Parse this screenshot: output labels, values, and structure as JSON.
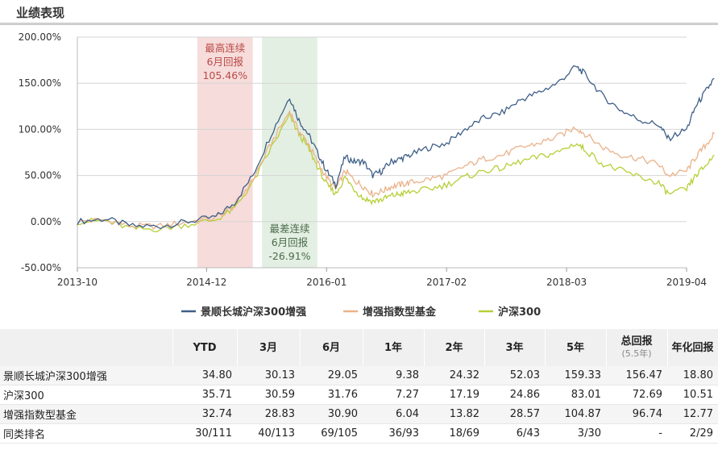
{
  "section_title": "业绩表现",
  "chart_data": {
    "type": "line",
    "y_ticks": [
      "200.00%",
      "150.00%",
      "100.00%",
      "50.00%",
      "0.00%",
      "-50.00%"
    ],
    "y_range": [
      -50,
      200
    ],
    "x_tick_labels": [
      "2013-10",
      "2014-12",
      "2016-01",
      "2017-02",
      "2018-03",
      "2019-04"
    ],
    "x_range": [
      "2013-10",
      "2019-04"
    ],
    "grid": "horizontal",
    "annotations": [
      {
        "text": [
          "最高连续",
          "6月回报",
          "105.46%"
        ],
        "color": "#b94a48",
        "shade": "#f6dcda"
      },
      {
        "text": [
          "最差连续",
          "6月回报",
          "-26.91%"
        ],
        "color": "#4b6b4b",
        "shade": "#e3efe3"
      }
    ],
    "legend_position": "bottom",
    "series": [
      {
        "name": "景顺长城沪深300增强",
        "color": "#3f5f88",
        "points": [
          [
            0,
            0
          ],
          [
            3,
            3
          ],
          [
            6,
            -5
          ],
          [
            9,
            -5
          ],
          [
            12,
            0
          ],
          [
            15,
            5
          ],
          [
            17,
            20
          ],
          [
            19,
            50
          ],
          [
            21,
            95
          ],
          [
            23,
            135
          ],
          [
            24,
            110
          ],
          [
            25,
            95
          ],
          [
            26,
            75
          ],
          [
            27,
            55
          ],
          [
            28,
            40
          ],
          [
            29,
            70
          ],
          [
            30,
            65
          ],
          [
            31,
            65
          ],
          [
            32,
            50
          ],
          [
            33,
            55
          ],
          [
            34,
            65
          ],
          [
            35,
            68
          ],
          [
            36,
            72
          ],
          [
            38,
            80
          ],
          [
            40,
            85
          ],
          [
            42,
            100
          ],
          [
            44,
            112
          ],
          [
            46,
            118
          ],
          [
            48,
            132
          ],
          [
            50,
            140
          ],
          [
            52,
            150
          ],
          [
            54,
            168
          ],
          [
            55,
            160
          ],
          [
            57,
            135
          ],
          [
            59,
            120
          ],
          [
            61,
            110
          ],
          [
            63,
            105
          ],
          [
            64,
            90
          ],
          [
            66,
            100
          ],
          [
            67,
            125
          ],
          [
            68,
            140
          ],
          [
            69,
            155
          ]
        ]
      },
      {
        "name": "增强指数型基金",
        "color": "#eab28a",
        "points": [
          [
            0,
            0
          ],
          [
            3,
            2
          ],
          [
            6,
            -5
          ],
          [
            9,
            -5
          ],
          [
            12,
            0
          ],
          [
            15,
            4
          ],
          [
            17,
            17
          ],
          [
            19,
            45
          ],
          [
            21,
            85
          ],
          [
            23,
            120
          ],
          [
            24,
            98
          ],
          [
            25,
            85
          ],
          [
            26,
            65
          ],
          [
            27,
            48
          ],
          [
            28,
            35
          ],
          [
            29,
            55
          ],
          [
            30,
            45
          ],
          [
            31,
            38
          ],
          [
            32,
            30
          ],
          [
            33,
            33
          ],
          [
            34,
            38
          ],
          [
            35,
            40
          ],
          [
            36,
            42
          ],
          [
            38,
            46
          ],
          [
            40,
            50
          ],
          [
            42,
            60
          ],
          [
            44,
            68
          ],
          [
            46,
            72
          ],
          [
            48,
            80
          ],
          [
            50,
            85
          ],
          [
            52,
            92
          ],
          [
            54,
            102
          ],
          [
            55,
            95
          ],
          [
            57,
            80
          ],
          [
            59,
            72
          ],
          [
            61,
            68
          ],
          [
            63,
            62
          ],
          [
            64,
            50
          ],
          [
            66,
            55
          ],
          [
            67,
            70
          ],
          [
            68,
            82
          ],
          [
            69,
            95
          ]
        ]
      },
      {
        "name": "沪深300",
        "color": "#b7cf37",
        "points": [
          [
            0,
            0
          ],
          [
            3,
            1
          ],
          [
            6,
            -8
          ],
          [
            9,
            -8
          ],
          [
            12,
            -3
          ],
          [
            15,
            2
          ],
          [
            17,
            14
          ],
          [
            19,
            42
          ],
          [
            21,
            80
          ],
          [
            23,
            115
          ],
          [
            24,
            95
          ],
          [
            25,
            80
          ],
          [
            26,
            60
          ],
          [
            27,
            40
          ],
          [
            28,
            30
          ],
          [
            29,
            48
          ],
          [
            30,
            35
          ],
          [
            31,
            25
          ],
          [
            32,
            22
          ],
          [
            33,
            24
          ],
          [
            34,
            28
          ],
          [
            35,
            30
          ],
          [
            36,
            32
          ],
          [
            38,
            35
          ],
          [
            40,
            40
          ],
          [
            42,
            48
          ],
          [
            44,
            55
          ],
          [
            46,
            58
          ],
          [
            48,
            65
          ],
          [
            50,
            70
          ],
          [
            52,
            75
          ],
          [
            54,
            85
          ],
          [
            55,
            78
          ],
          [
            57,
            62
          ],
          [
            59,
            55
          ],
          [
            61,
            48
          ],
          [
            63,
            42
          ],
          [
            64,
            30
          ],
          [
            66,
            35
          ],
          [
            67,
            50
          ],
          [
            68,
            60
          ],
          [
            69,
            72
          ]
        ]
      }
    ]
  },
  "table": {
    "headers": [
      "",
      "YTD",
      "3月",
      "6月",
      "1年",
      "2年",
      "3年",
      "5年",
      "总回报",
      "年化回报"
    ],
    "total_sub": "(5.5年)",
    "rows": [
      {
        "name": "景顺长城沪深300增强",
        "values": [
          "34.80",
          "30.13",
          "29.05",
          "9.38",
          "24.32",
          "52.03",
          "159.33",
          "156.47",
          "18.80"
        ]
      },
      {
        "name": "沪深300",
        "values": [
          "35.71",
          "30.59",
          "31.76",
          "7.27",
          "17.19",
          "24.86",
          "83.01",
          "72.69",
          "10.51"
        ]
      },
      {
        "name": "增强指数型基金",
        "values": [
          "32.74",
          "28.83",
          "30.90",
          "6.04",
          "13.82",
          "28.57",
          "104.87",
          "96.74",
          "12.77"
        ]
      },
      {
        "name": "同类排名",
        "values": [
          "30/111",
          "40/113",
          "69/105",
          "36/93",
          "18/69",
          "6/43",
          "3/30",
          "-",
          "2/29"
        ]
      }
    ]
  }
}
